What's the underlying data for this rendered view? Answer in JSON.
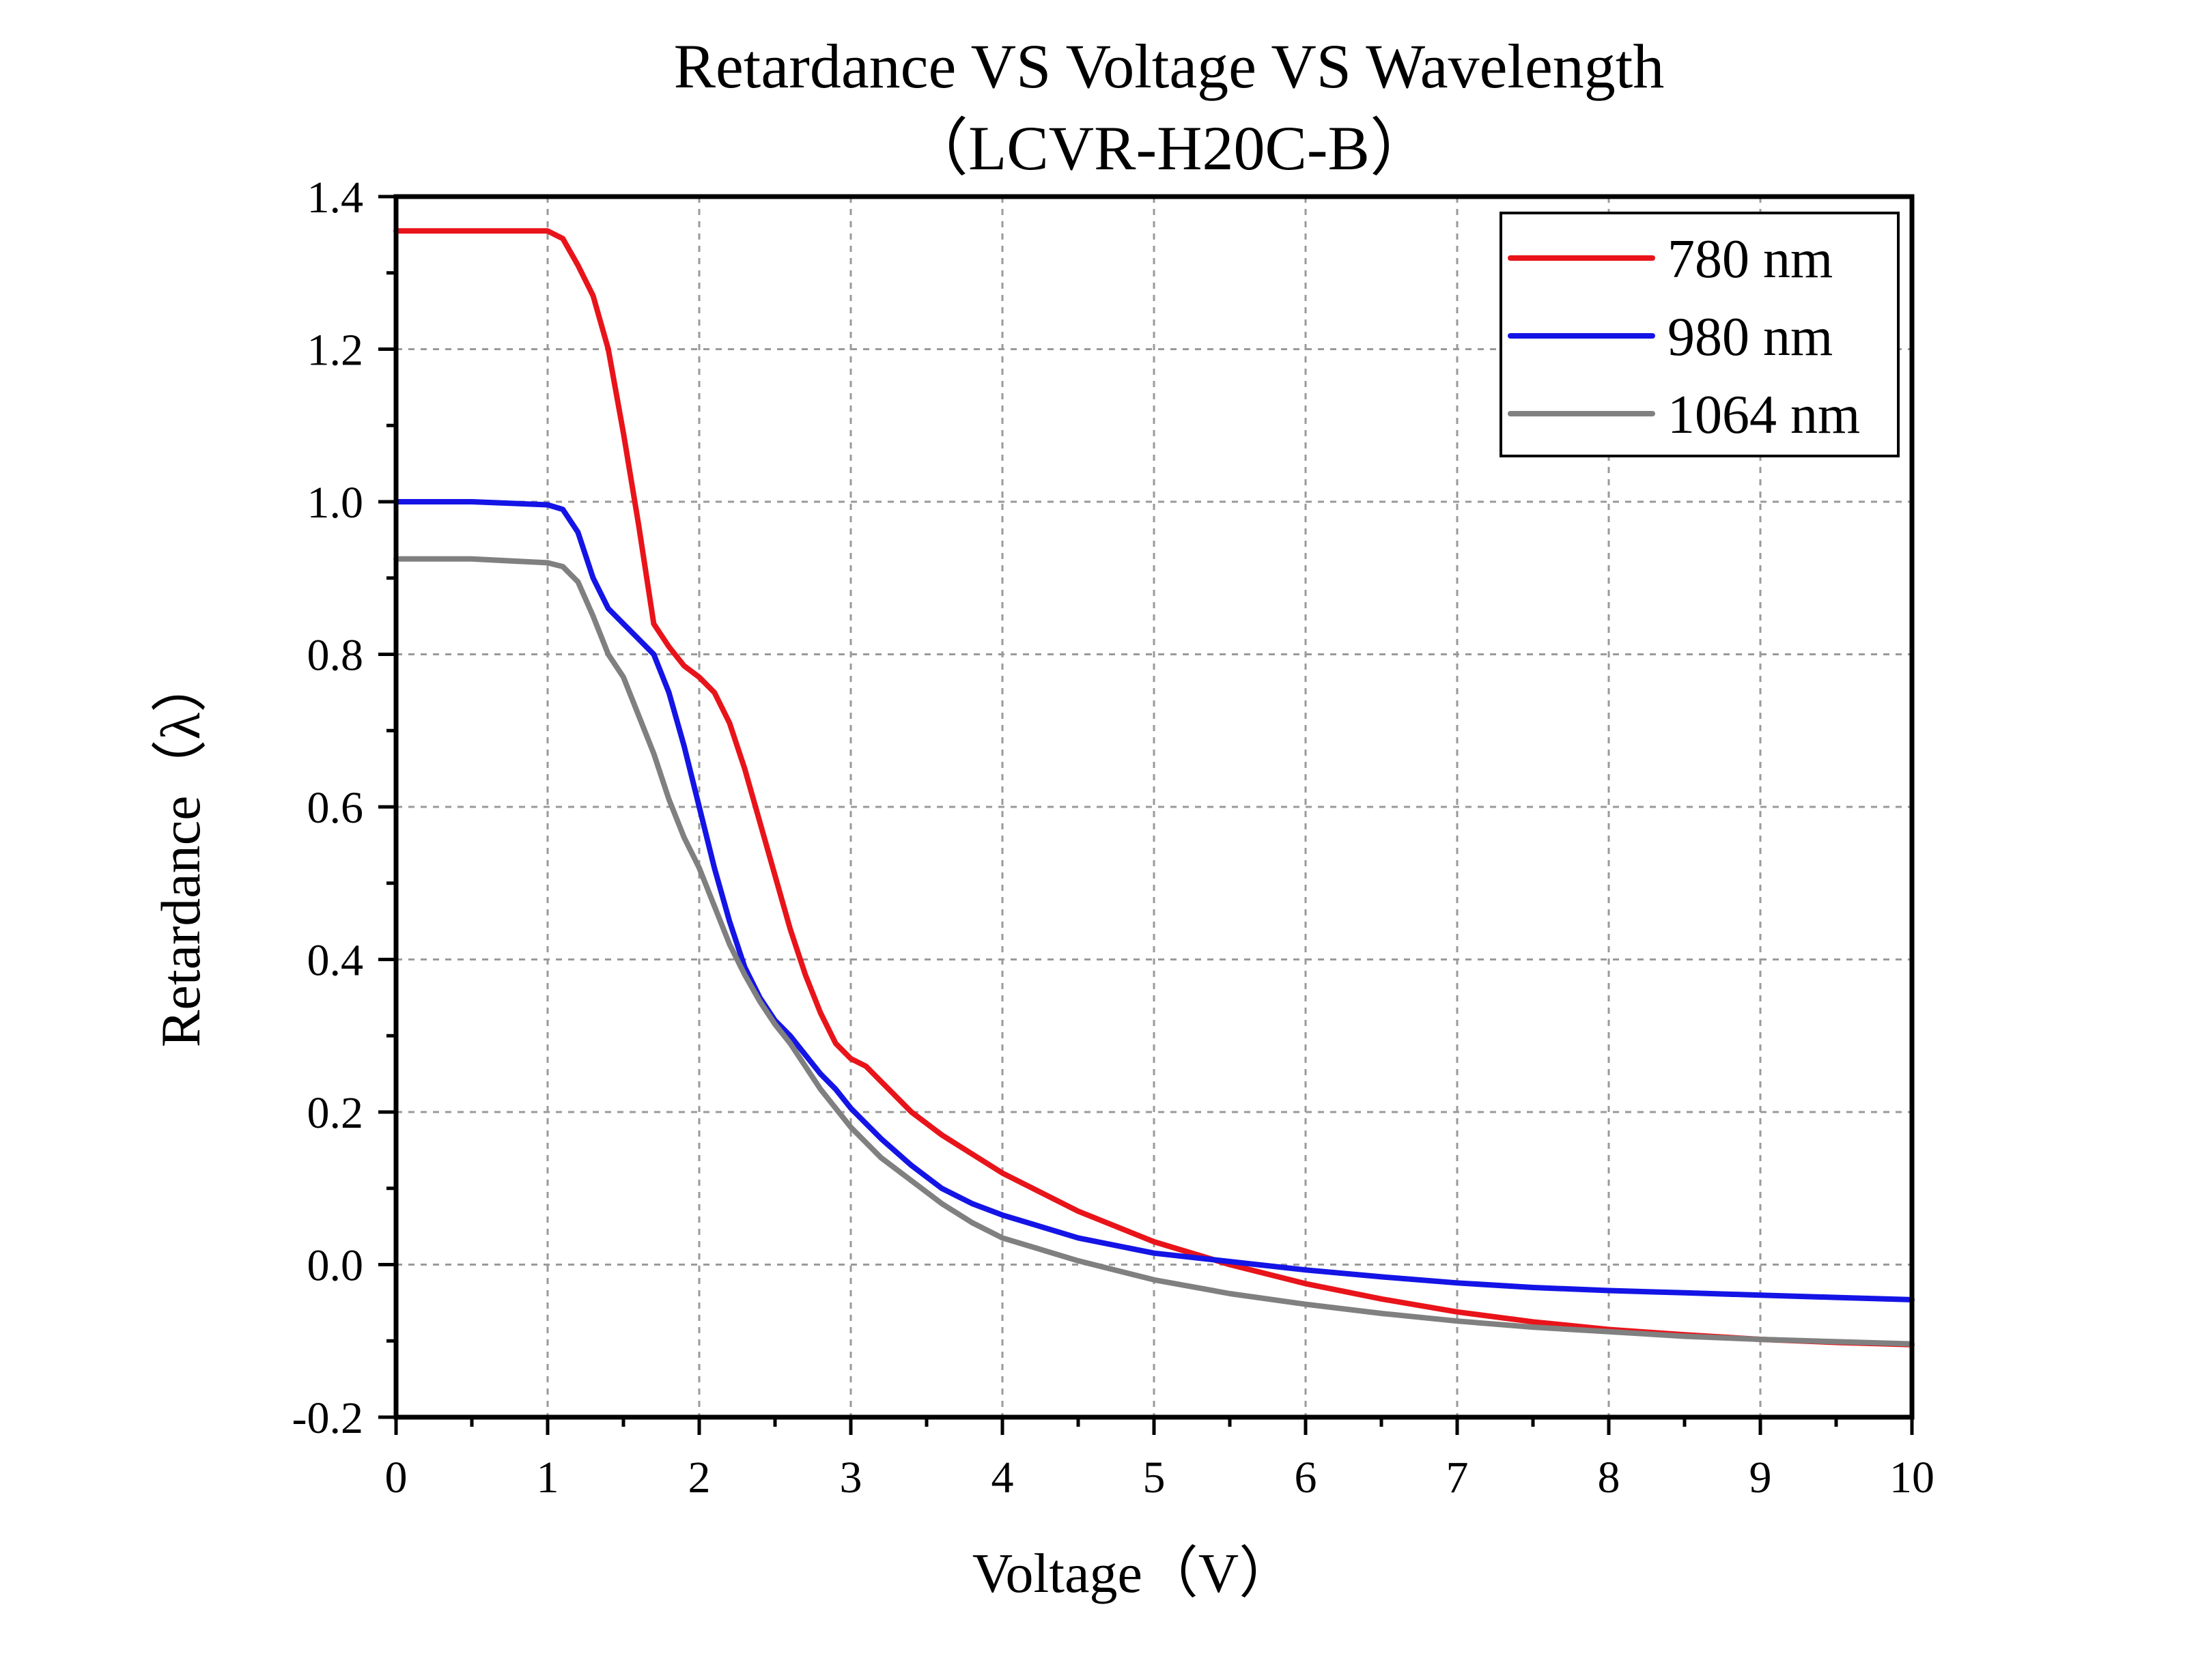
{
  "chart_data": {
    "type": "line",
    "title": "Retardance VS Voltage VS Wavelength",
    "subtitle": "（LCVR-H20C-B）",
    "xlabel": "Voltage（V）",
    "ylabel": "Retardance（λ）",
    "xlim": [
      0,
      10
    ],
    "ylim": [
      -0.2,
      1.4
    ],
    "xticks": [
      "0",
      "1",
      "2",
      "3",
      "4",
      "5",
      "6",
      "7",
      "8",
      "9",
      "10"
    ],
    "yticks": [
      "-0.2",
      "0.0",
      "0.2",
      "0.4",
      "0.6",
      "0.8",
      "1.0",
      "1.2",
      "1.4"
    ],
    "grid": true,
    "legend_position": "top-right",
    "x": [
      0,
      0.5,
      1.0,
      1.1,
      1.2,
      1.3,
      1.4,
      1.5,
      1.6,
      1.7,
      1.8,
      1.9,
      2.0,
      2.1,
      2.2,
      2.3,
      2.4,
      2.5,
      2.6,
      2.7,
      2.8,
      2.9,
      3.0,
      3.1,
      3.2,
      3.4,
      3.6,
      3.8,
      4.0,
      4.5,
      5.0,
      5.5,
      6.0,
      6.5,
      7.0,
      7.5,
      8.0,
      8.5,
      9.0,
      9.5,
      10.0
    ],
    "series": [
      {
        "name": "780 nm",
        "color": "#e8141a",
        "values": [
          1.355,
          1.355,
          1.355,
          1.345,
          1.31,
          1.27,
          1.2,
          1.09,
          0.97,
          0.84,
          0.81,
          0.785,
          0.77,
          0.75,
          0.71,
          0.65,
          0.58,
          0.51,
          0.44,
          0.38,
          0.33,
          0.29,
          0.27,
          0.26,
          0.24,
          0.2,
          0.17,
          0.145,
          0.12,
          0.07,
          0.03,
          0.0,
          -0.025,
          -0.045,
          -0.062,
          -0.075,
          -0.085,
          -0.092,
          -0.098,
          -0.102,
          -0.105
        ]
      },
      {
        "name": "980 nm",
        "color": "#1414e6",
        "values": [
          1.0,
          1.0,
          0.996,
          0.99,
          0.96,
          0.9,
          0.86,
          0.84,
          0.82,
          0.8,
          0.75,
          0.68,
          0.6,
          0.52,
          0.45,
          0.39,
          0.35,
          0.32,
          0.3,
          0.275,
          0.25,
          0.23,
          0.205,
          0.185,
          0.165,
          0.13,
          0.1,
          0.08,
          0.065,
          0.035,
          0.015,
          0.004,
          -0.007,
          -0.016,
          -0.024,
          -0.03,
          -0.034,
          -0.037,
          -0.04,
          -0.043,
          -0.046
        ]
      },
      {
        "name": "1064 nm",
        "color": "#808080",
        "values": [
          0.925,
          0.925,
          0.92,
          0.915,
          0.895,
          0.85,
          0.8,
          0.77,
          0.72,
          0.67,
          0.61,
          0.56,
          0.52,
          0.47,
          0.42,
          0.38,
          0.345,
          0.315,
          0.29,
          0.26,
          0.23,
          0.205,
          0.18,
          0.16,
          0.14,
          0.11,
          0.08,
          0.055,
          0.035,
          0.005,
          -0.02,
          -0.038,
          -0.052,
          -0.064,
          -0.074,
          -0.082,
          -0.088,
          -0.094,
          -0.098,
          -0.101,
          -0.104
        ]
      }
    ]
  }
}
